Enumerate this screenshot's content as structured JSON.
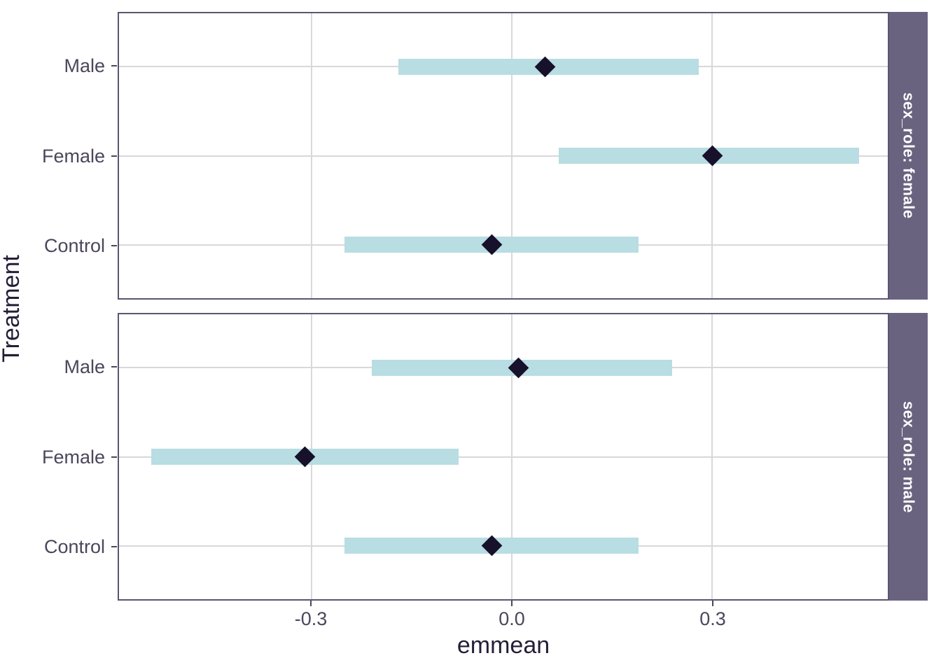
{
  "figure": {
    "background": "#ffffff"
  },
  "chart_data": {
    "type": "scatter",
    "subtype": "point-estimate-with-ci-bars-faceted",
    "title": "",
    "x_label": "emmean",
    "y_label": "Treatment",
    "xlim": [
      -0.588,
      0.563
    ],
    "x_ticks": [
      -0.3,
      0.0,
      0.3
    ],
    "x_tick_labels": [
      "-0.3",
      "0.0",
      "0.3"
    ],
    "categories_top_to_bottom": [
      "Male",
      "Female",
      "Control"
    ],
    "grid": "major-only",
    "legend_position": "none",
    "facet_strip_position": "right",
    "facets": [
      {
        "label": "sex_role: female",
        "rows": [
          {
            "category": "Male",
            "estimate": 0.05,
            "ci_lower": -0.17,
            "ci_upper": 0.28
          },
          {
            "category": "Female",
            "estimate": 0.3,
            "ci_lower": 0.07,
            "ci_upper": 0.52
          },
          {
            "category": "Control",
            "estimate": -0.03,
            "ci_lower": -0.25,
            "ci_upper": 0.19
          }
        ]
      },
      {
        "label": "sex_role: male",
        "rows": [
          {
            "category": "Male",
            "estimate": 0.01,
            "ci_lower": -0.21,
            "ci_upper": 0.24
          },
          {
            "category": "Female",
            "estimate": -0.31,
            "ci_lower": -0.54,
            "ci_upper": -0.08
          },
          {
            "category": "Control",
            "estimate": -0.03,
            "ci_lower": -0.25,
            "ci_upper": 0.19
          }
        ]
      }
    ],
    "colors": {
      "ci_bar": "#b8dde2",
      "point": "#17112b",
      "strip_background": "#6a6380",
      "strip_text": "#ffffff",
      "gridline": "#d8d8dc",
      "panel_border": "#5c5570",
      "tick_label": "#4c465c",
      "axis_title": "#241e38"
    }
  }
}
